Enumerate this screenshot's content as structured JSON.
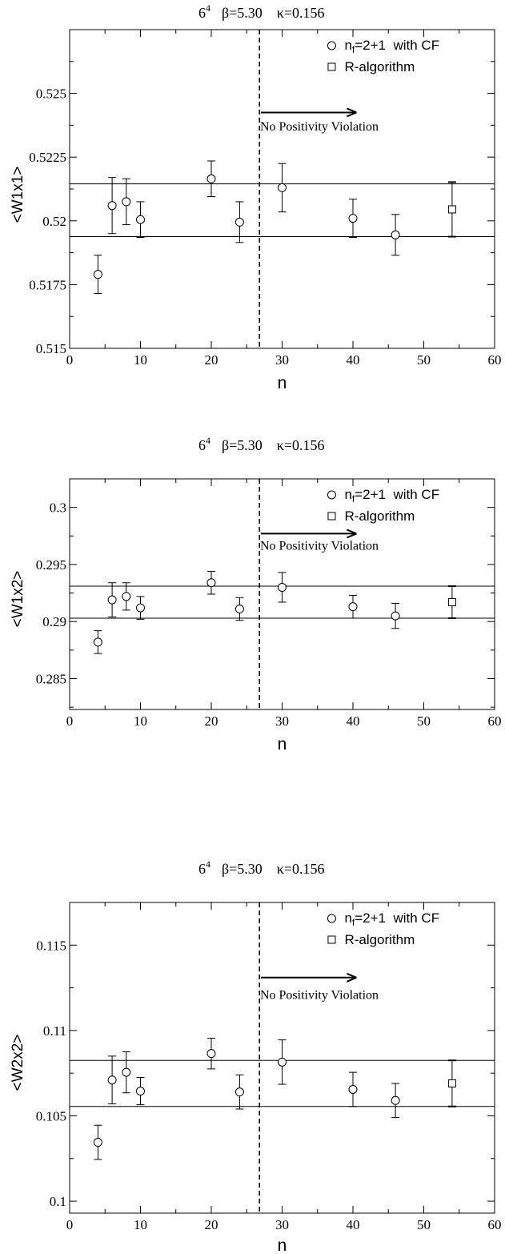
{
  "figure": {
    "legend": {
      "cf_label_prefix": "n",
      "cf_label_sub": "f",
      "cf_label_suffix": "=2+1  with CF",
      "r_label": "R-algorithm"
    },
    "annotation": "No Positivity Violation",
    "colors": {
      "ink": "#000000",
      "background": "#ffffff"
    }
  },
  "chart_data": [
    {
      "type": "scatter",
      "title": {
        "base": "6",
        "exp": "4",
        "beta": "β=5.30",
        "kappa": "κ=0.156"
      },
      "xlabel": "n",
      "ylabel": "<W1x1>",
      "xlim": [
        0,
        60
      ],
      "ylim": [
        0.515,
        0.5275
      ],
      "xticks": [
        "0",
        "10",
        "20",
        "30",
        "40",
        "50",
        "60"
      ],
      "yticks": [
        "0.515",
        "0.5175",
        "0.52",
        "0.5225",
        "0.525"
      ],
      "ytick_values": [
        0.515,
        0.5175,
        0.52,
        0.5225,
        0.525
      ],
      "hlines": [
        0.52145,
        0.51938
      ],
      "vline_x": 26.8,
      "arrow": {
        "x_start": 27,
        "x_end": 40.5,
        "y": 0.52425,
        "label_y": 0.52355
      },
      "series": [
        {
          "name": "nf=2+1 with CF",
          "marker": "circle",
          "x": [
            4,
            6,
            8,
            10,
            20,
            24,
            30,
            40,
            46
          ],
          "y": [
            0.5179,
            0.5206,
            0.52075,
            0.52005,
            0.52165,
            0.51995,
            0.5213,
            0.5201,
            0.51945
          ],
          "err": [
            0.00075,
            0.0011,
            0.0009,
            0.0007,
            0.0007,
            0.0008,
            0.00095,
            0.00075,
            0.0008
          ]
        },
        {
          "name": "R-algorithm",
          "marker": "square",
          "x": [
            54
          ],
          "y": [
            0.52045
          ],
          "err": [
            0.00107
          ]
        }
      ]
    },
    {
      "type": "scatter",
      "title": {
        "base": "6",
        "exp": "4",
        "beta": "β=5.30",
        "kappa": "κ=0.156"
      },
      "xlabel": "n",
      "ylabel": "<W1x2>",
      "xlim": [
        0,
        60
      ],
      "ylim": [
        0.2823,
        0.3025
      ],
      "xticks": [
        "0",
        "10",
        "20",
        "30",
        "40",
        "50",
        "60"
      ],
      "yticks": [
        "0.285",
        "0.29",
        "0.295",
        "0.3"
      ],
      "ytick_values": [
        0.285,
        0.29,
        0.295,
        0.3
      ],
      "hlines": [
        0.2931,
        0.2903
      ],
      "vline_x": 26.8,
      "arrow": {
        "x_start": 27,
        "x_end": 40.5,
        "y": 0.2977,
        "label_y": 0.2963
      },
      "series": [
        {
          "name": "nf=2+1 with CF",
          "marker": "circle",
          "x": [
            4,
            6,
            8,
            10,
            20,
            24,
            30,
            40,
            46
          ],
          "y": [
            0.2882,
            0.2919,
            0.2922,
            0.2912,
            0.2934,
            0.2911,
            0.293,
            0.2913,
            0.2905
          ],
          "err": [
            0.001,
            0.0015,
            0.0012,
            0.001,
            0.001,
            0.001,
            0.0013,
            0.001,
            0.0011
          ]
        },
        {
          "name": "R-algorithm",
          "marker": "square",
          "x": [
            54
          ],
          "y": [
            0.2917
          ],
          "err": [
            0.0014
          ]
        }
      ]
    },
    {
      "type": "scatter",
      "title": {
        "base": "6",
        "exp": "4",
        "beta": "β=5.30",
        "kappa": "κ=0.156"
      },
      "xlabel": "n",
      "ylabel": "<W2x2>",
      "xlim": [
        0,
        60
      ],
      "ylim": [
        0.0993,
        0.1175
      ],
      "xticks": [
        "0",
        "10",
        "20",
        "30",
        "40",
        "50",
        "60"
      ],
      "yticks": [
        "0.1",
        "0.105",
        "0.11",
        "0.115"
      ],
      "ytick_values": [
        0.1,
        0.105,
        0.11,
        0.115
      ],
      "hlines": [
        0.10825,
        0.10555
      ],
      "vline_x": 26.8,
      "arrow": {
        "x_start": 27,
        "x_end": 40.5,
        "y": 0.1131,
        "label_y": 0.11185
      },
      "series": [
        {
          "name": "nf=2+1 with CF",
          "marker": "circle",
          "x": [
            4,
            6,
            8,
            10,
            20,
            24,
            30,
            40,
            46
          ],
          "y": [
            0.10345,
            0.1071,
            0.10755,
            0.10645,
            0.10865,
            0.1064,
            0.10815,
            0.10655,
            0.1059
          ],
          "err": [
            0.001,
            0.0014,
            0.0012,
            0.0008,
            0.0009,
            0.001,
            0.0013,
            0.001,
            0.001
          ]
        },
        {
          "name": "R-algorithm",
          "marker": "square",
          "x": [
            54
          ],
          "y": [
            0.1069
          ],
          "err": [
            0.00135
          ]
        }
      ]
    }
  ]
}
